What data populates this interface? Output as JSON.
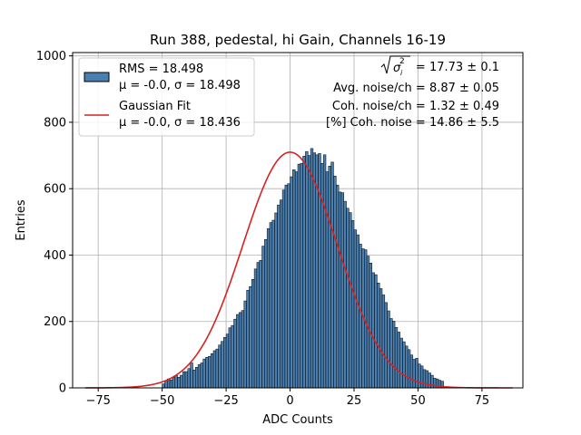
{
  "chart_data": {
    "type": "bar",
    "title": "Run 388, pedestal, hi Gain, Channels 16-19",
    "xlabel": "ADC Counts",
    "ylabel": "Entries",
    "xlim": [
      -85,
      91
    ],
    "ylim": [
      0,
      1010
    ],
    "xticks": [
      -75,
      -50,
      -25,
      0,
      25,
      50,
      75
    ],
    "xtick_labels": [
      "−75",
      "−50",
      "−25",
      "0",
      "25",
      "50",
      "75"
    ],
    "yticks": [
      0,
      200,
      400,
      600,
      800,
      1000
    ],
    "ytick_labels": [
      "0",
      "200",
      "400",
      "600",
      "800",
      "1000"
    ],
    "grid": true,
    "colors": {
      "histogram_fill": "#4a7fb0",
      "histogram_edge": "#000000",
      "fit_line": "#d62222",
      "grid": "#b0b0b0"
    },
    "histogram": {
      "name": "RMS = 18.498",
      "legend_line1": "RMS = 18.498",
      "legend_line2": "μ = -0.0, σ = 18.498",
      "bin_width": 1,
      "bin_start": -50,
      "counts": [
        12,
        22,
        27,
        24,
        31,
        37,
        32,
        38,
        49,
        49,
        58,
        75,
        54,
        62,
        70,
        75,
        87,
        92,
        95,
        103,
        112,
        117,
        129,
        140,
        152,
        162,
        181,
        188,
        207,
        221,
        227,
        233,
        262,
        294,
        305,
        327,
        358,
        378,
        384,
        427,
        447,
        480,
        498,
        505,
        527,
        551,
        566,
        596,
        611,
        615,
        636,
        657,
        651,
        674,
        676,
        698,
        712,
        700,
        721,
        708,
        702,
        706,
        676,
        702,
        651,
        668,
        680,
        638,
        611,
        590,
        588,
        562,
        541,
        528,
        504,
        476,
        461,
        433,
        419,
        416,
        397,
        376,
        347,
        341,
        316,
        299,
        280,
        257,
        232,
        209,
        201,
        182,
        168,
        150,
        139,
        126,
        115,
        99,
        86,
        89,
        72,
        66,
        55,
        52,
        45,
        38,
        29,
        27,
        23,
        20
      ]
    },
    "fit": {
      "name": "Gaussian Fit",
      "legend_line1": "Gaussian Fit",
      "legend_line2": "μ = -0.0, σ = 18.436",
      "mu": 0.0,
      "sigma": 18.436,
      "amplitude": 710,
      "x_range": [
        -80,
        87
      ]
    },
    "stats": {
      "sigma_label": "= 17.73 ± 0.1",
      "avg_noise": "Avg. noise/ch = 8.87 ± 0.05",
      "coh_noise": "Coh. noise/ch = 1.32 ± 0.49",
      "coh_percent": "[%] Coh. noise = 14.86 ± 5.5"
    }
  }
}
